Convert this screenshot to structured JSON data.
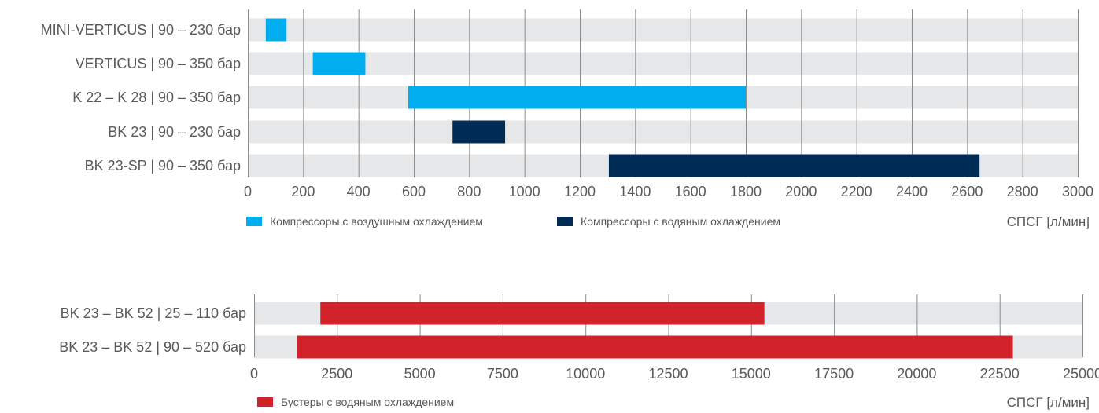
{
  "chart_data": [
    {
      "type": "bar",
      "subtype": "floating-range-horizontal",
      "categories": [
        "MINI-VERTICUS | 90 – 230 бар",
        "VERTICUS | 90 – 350 бар",
        "K 22 – K 28 | 90 – 350 бар",
        "BK 23 | 90 – 230 бар",
        "BK 23-SP | 90 – 350 бар"
      ],
      "ranges": [
        [
          65,
          140
        ],
        [
          235,
          425
        ],
        [
          580,
          1800
        ],
        [
          740,
          930
        ],
        [
          1305,
          2645
        ]
      ],
      "series_index": [
        0,
        0,
        0,
        1,
        1
      ],
      "series": [
        {
          "name": "Компрессоры с воздушным охлаждением",
          "color": "#00aeef"
        },
        {
          "name": "Компрессоры с водяным охлаждением",
          "color": "#002b54"
        }
      ],
      "xticks": [
        "0",
        "200",
        "400",
        "600",
        "800",
        "1000",
        "1200",
        "1400",
        "1600",
        "1800",
        "2000",
        "2200",
        "2400",
        "2600",
        "2800",
        "3000"
      ],
      "xlim": [
        0,
        3000
      ],
      "xlabel": "СПСГ [л/мин]",
      "grid": true,
      "legend_position": "bottom-left"
    },
    {
      "type": "bar",
      "subtype": "floating-range-horizontal",
      "categories": [
        "BK 23 – BK 52 | 25 – 110 бар",
        "BK 23 – BK 52 | 90 – 520 бар"
      ],
      "ranges": [
        [
          2000,
          15400
        ],
        [
          1300,
          22900
        ]
      ],
      "series_index": [
        0,
        0
      ],
      "series": [
        {
          "name": "Бустеры с водяным охлаждением",
          "color": "#d2232a"
        }
      ],
      "xticks": [
        "0",
        "2500",
        "5000",
        "7500",
        "10000",
        "12500",
        "15000",
        "17500",
        "20000",
        "22500",
        "25000"
      ],
      "xlim": [
        0,
        25000
      ],
      "xlabel": "СПСГ [л/мин]",
      "grid": true,
      "legend_position": "bottom-left"
    }
  ],
  "colors": {
    "track": "#e6e7e8",
    "grid": "#8c8c8c",
    "text": "#58595b"
  }
}
